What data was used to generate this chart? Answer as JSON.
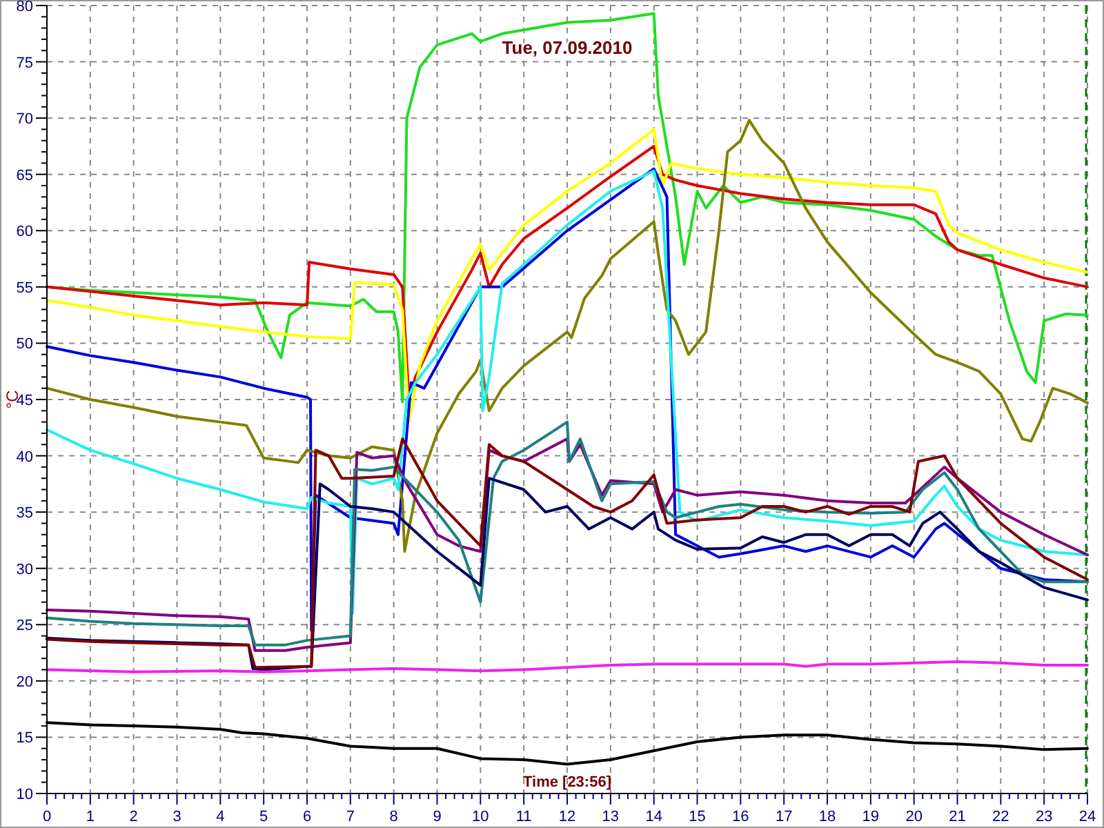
{
  "chart_data": {
    "type": "line",
    "title": "Tue, 07.09.2010",
    "xlabel": "Time [23:56]",
    "ylabel": "°C",
    "xlim": [
      0,
      24
    ],
    "ylim": [
      10,
      80
    ],
    "xticks": [
      0,
      1,
      2,
      3,
      4,
      5,
      6,
      7,
      8,
      9,
      10,
      11,
      12,
      13,
      14,
      15,
      16,
      17,
      18,
      19,
      20,
      21,
      22,
      23,
      24
    ],
    "yticks": [
      10,
      15,
      20,
      25,
      30,
      35,
      40,
      45,
      50,
      55,
      60,
      65,
      70,
      75,
      80
    ],
    "grid": true,
    "marker": "none",
    "line_style": "solid",
    "ref_lines": [
      {
        "axis": "x",
        "value": 24,
        "color": "#008000",
        "line_style": "dashed"
      }
    ],
    "series": [
      {
        "color": "#22dd22",
        "x": [
          0,
          1,
          2,
          3,
          4,
          4.8,
          5.1,
          5.4,
          5.6,
          6,
          7,
          7.3,
          7.6,
          8,
          8.1,
          8.2,
          8.3,
          8.6,
          9,
          9.8,
          10,
          10.5,
          12,
          13,
          14,
          14.1,
          14.5,
          14.7,
          15,
          15.2,
          15.6,
          16,
          16.5,
          17,
          18,
          19,
          20,
          20.5,
          21,
          21.5,
          21.8,
          22.2,
          22.6,
          22.8,
          23,
          23.5,
          24
        ],
        "values": [
          55,
          54.7,
          54.5,
          54.3,
          54.1,
          53.8,
          51,
          48.7,
          52.5,
          53.6,
          53.3,
          53.9,
          52.8,
          52.8,
          51,
          44.8,
          70,
          74.5,
          76.5,
          77.5,
          76.8,
          77.5,
          78.5,
          78.7,
          79.3,
          72,
          63,
          57,
          63.5,
          62,
          64,
          62.5,
          63,
          62.5,
          62.3,
          61.8,
          61,
          59.5,
          58.3,
          57.8,
          57.8,
          52,
          47.5,
          46.5,
          52,
          52.6,
          52.5
        ]
      },
      {
        "color": "#dd0000",
        "x": [
          0,
          1,
          2,
          3,
          4,
          5,
          6,
          6.05,
          7,
          8,
          8.2,
          8.35,
          8.5,
          9,
          9.8,
          10,
          10.2,
          10.5,
          11,
          12,
          13,
          14,
          14.2,
          14.5,
          15,
          16,
          17,
          18,
          19,
          20,
          20.5,
          20.8,
          21,
          22,
          23,
          24
        ],
        "values": [
          55,
          54.6,
          54.2,
          53.8,
          53.4,
          53.6,
          53.4,
          57.2,
          56.6,
          56.1,
          55,
          45,
          47,
          51,
          56.5,
          58,
          55,
          57,
          59.3,
          62,
          64.8,
          67.5,
          65,
          64.5,
          64,
          63.3,
          62.8,
          62.5,
          62.3,
          62.3,
          61.5,
          59,
          58.3,
          57,
          55.8,
          55
        ]
      },
      {
        "color": "#ffff00",
        "x": [
          0,
          1,
          2,
          3,
          4,
          5,
          6,
          7,
          7.1,
          8,
          8.2,
          8.35,
          8.6,
          9,
          9.8,
          10,
          10.2,
          10.5,
          11,
          12,
          13,
          14,
          14.2,
          14.4,
          15,
          16,
          17,
          18,
          19,
          20,
          20.5,
          20.8,
          21,
          22,
          23,
          24
        ],
        "values": [
          53.8,
          53.2,
          52.5,
          52,
          51.5,
          51,
          50.6,
          50.4,
          55.4,
          55.2,
          53,
          43,
          48,
          52,
          57.5,
          58.8,
          56.5,
          58,
          60.5,
          63.5,
          66,
          69,
          64,
          66,
          65.5,
          65,
          64.7,
          64.3,
          64,
          63.8,
          63.5,
          60.5,
          59.8,
          58.3,
          57.2,
          56.3
        ]
      },
      {
        "color": "#0000dd",
        "x": [
          0,
          1,
          2,
          3,
          4,
          5,
          6,
          6.08,
          6.1,
          6.2,
          7,
          8,
          8.1,
          8.4,
          8.7,
          10,
          10.5,
          12,
          14,
          14.3,
          14.5,
          15,
          15.5,
          16,
          17,
          17.5,
          18,
          19,
          19.5,
          20,
          20.5,
          20.7,
          21.5,
          22,
          23,
          24
        ],
        "values": [
          49.7,
          48.9,
          48.3,
          47.6,
          47,
          46,
          45.2,
          45,
          24.5,
          36.5,
          34.5,
          34,
          33,
          46.5,
          46,
          55,
          55,
          60,
          65.5,
          63,
          33,
          32,
          31,
          31.3,
          32,
          31.5,
          32,
          31,
          32,
          31,
          33.5,
          34,
          31.5,
          30,
          29,
          28.8
        ]
      },
      {
        "color": "#808000",
        "x": [
          0,
          1,
          2,
          3,
          4,
          4.6,
          5,
          5.8,
          6,
          6.5,
          7,
          7.5,
          8,
          8.2,
          8.25,
          8.5,
          9,
          9.5,
          9.9,
          10,
          10.2,
          10.5,
          11,
          12,
          12.1,
          12.4,
          12.8,
          13,
          14,
          14.1,
          14.3,
          14.5,
          14.8,
          15.2,
          15.5,
          15.7,
          16,
          16.2,
          16.5,
          17,
          17.5,
          18,
          19,
          20,
          20.5,
          21,
          21.5,
          22,
          22.5,
          22.7,
          22.9,
          23.2,
          23.6,
          24
        ],
        "values": [
          46,
          45,
          44.3,
          43.5,
          43,
          42.7,
          39.8,
          39.4,
          40.5,
          40,
          39.8,
          40.8,
          40.5,
          36,
          31.5,
          36.5,
          42,
          45.5,
          47.5,
          48.5,
          44,
          46,
          48,
          51,
          50.5,
          54,
          56,
          57.5,
          60.8,
          58,
          53,
          52,
          49,
          51,
          60,
          67,
          68,
          69.8,
          68,
          66,
          62,
          59,
          54.5,
          50.8,
          49,
          48.3,
          47.5,
          45.5,
          41.5,
          41.3,
          43,
          46,
          45.5,
          44.7
        ]
      },
      {
        "color": "#22eeee",
        "x": [
          0,
          1,
          2,
          3,
          4,
          5,
          6,
          6.1,
          6.5,
          7,
          7.05,
          7.15,
          7.5,
          8,
          8.1,
          8.3,
          8.5,
          9,
          9.5,
          10,
          10.05,
          10.2,
          10.5,
          11,
          12,
          13,
          14,
          14.2,
          14.6,
          15,
          16,
          17,
          18,
          19,
          20,
          20.5,
          20.7,
          21,
          21.5,
          22,
          23,
          24
        ],
        "values": [
          42.3,
          40.5,
          39.3,
          38,
          37,
          35.9,
          35.3,
          36.3,
          35.8,
          35.5,
          26,
          38,
          37.5,
          38,
          37,
          45,
          46.5,
          49,
          52,
          55,
          44,
          47,
          55.3,
          57,
          60.5,
          63.5,
          65.3,
          62,
          35,
          34.2,
          35.2,
          34.5,
          34.2,
          33.8,
          34.2,
          36.5,
          37.3,
          35.5,
          33.5,
          32.5,
          31.5,
          31.2
        ]
      },
      {
        "color": "#800080",
        "x": [
          0,
          1,
          2,
          3,
          4,
          4.65,
          4.8,
          5.5,
          6,
          7,
          7.15,
          7.5,
          8,
          8.3,
          9,
          9.5,
          10,
          10.2,
          10.5,
          11,
          12,
          12.05,
          12.3,
          12.8,
          13,
          14,
          14.2,
          14.5,
          15,
          16,
          17,
          18,
          19,
          19.8,
          20,
          20.7,
          21,
          22,
          23,
          24
        ],
        "values": [
          26.3,
          26.2,
          26,
          25.8,
          25.7,
          25.5,
          22.7,
          22.7,
          23,
          23.4,
          40.3,
          39.8,
          40,
          37.5,
          33,
          32,
          31.5,
          40.5,
          40,
          39.5,
          41.5,
          39.5,
          41,
          36.5,
          37.8,
          37.5,
          35,
          37,
          36.5,
          36.8,
          36.5,
          36,
          35.8,
          35.8,
          36.5,
          39,
          38,
          35,
          33,
          31.2
        ]
      },
      {
        "color": "#208080",
        "x": [
          0,
          1,
          2,
          3,
          4,
          4.65,
          4.8,
          5.5,
          6,
          7,
          7.1,
          7.5,
          8,
          8.5,
          9,
          9.5,
          10,
          10.3,
          10.5,
          11,
          12,
          12.05,
          12.3,
          12.8,
          13,
          14,
          14.3,
          14.5,
          15,
          15.5,
          16,
          17,
          18,
          19,
          19.8,
          20.2,
          20.7,
          21,
          21.5,
          22,
          22.5,
          23,
          24
        ],
        "values": [
          25.6,
          25.3,
          25.1,
          25,
          24.9,
          24.9,
          23.2,
          23.2,
          23.6,
          24,
          38.8,
          38.7,
          39,
          37,
          35,
          32.5,
          27,
          38,
          39.5,
          40.5,
          43,
          39.5,
          41.5,
          36,
          37.5,
          37.7,
          35,
          34.5,
          35,
          35.5,
          35.7,
          35.2,
          35,
          34.9,
          35,
          37,
          38.5,
          37,
          33.5,
          31.5,
          29.5,
          28.8,
          28.8
        ]
      },
      {
        "color": "#000060",
        "x": [
          0,
          1,
          2,
          3,
          4,
          4.65,
          4.75,
          5,
          6,
          6.1,
          6.3,
          6.5,
          7,
          7.5,
          8,
          9,
          10,
          10.2,
          11,
          11.5,
          12,
          12.5,
          13,
          13.5,
          14,
          14.1,
          14.5,
          15,
          16,
          16.5,
          17,
          17.5,
          18,
          18.5,
          19,
          19.5,
          19.9,
          20.2,
          20.6,
          21,
          21.5,
          22,
          23,
          24
        ],
        "values": [
          23.8,
          23.6,
          23.5,
          23.4,
          23.3,
          23.2,
          21.1,
          21,
          21.3,
          21.3,
          37.5,
          37,
          35.5,
          35.3,
          35,
          31.5,
          28.5,
          38,
          37,
          35,
          35.5,
          33.5,
          34.5,
          33.5,
          35,
          33.5,
          32.5,
          31.7,
          31.8,
          32.8,
          32.3,
          33,
          33,
          32,
          33,
          33,
          32,
          34,
          35,
          33.5,
          31.5,
          30.5,
          28.3,
          27.2
        ]
      },
      {
        "color": "#800000",
        "x": [
          0,
          1,
          2,
          3,
          4,
          4.65,
          4.8,
          6.1,
          6.2,
          6.5,
          6.8,
          7,
          8,
          8.2,
          9,
          10,
          10.2,
          10.5,
          11,
          12,
          12.6,
          13,
          13.5,
          14,
          14.3,
          15,
          16,
          16.5,
          17,
          17.5,
          18,
          18.5,
          19,
          19.5,
          19.9,
          20.1,
          20.7,
          21,
          22,
          23,
          24
        ],
        "values": [
          23.7,
          23.5,
          23.4,
          23.3,
          23.2,
          23.2,
          21.2,
          21.3,
          40.5,
          40,
          38,
          38,
          38.2,
          41.5,
          36,
          32,
          41,
          40,
          39.5,
          37,
          35.5,
          35,
          36,
          38.3,
          34,
          34.3,
          34.5,
          35.5,
          35.5,
          35,
          35.5,
          34.8,
          35.5,
          35.5,
          35,
          39.5,
          40,
          38,
          34,
          31,
          29
        ]
      },
      {
        "color": "#ee22ee",
        "x": [
          0,
          2,
          4,
          5,
          6,
          7,
          8,
          9,
          10,
          11,
          12,
          13,
          14,
          15,
          17,
          17.5,
          18,
          19,
          20,
          21,
          22,
          23,
          24
        ],
        "values": [
          21,
          20.8,
          20.9,
          20.8,
          20.9,
          21,
          21.1,
          21,
          20.9,
          21,
          21.2,
          21.4,
          21.5,
          21.5,
          21.5,
          21.3,
          21.5,
          21.5,
          21.6,
          21.7,
          21.6,
          21.4,
          21.4
        ]
      },
      {
        "color": "#000000",
        "x": [
          0,
          1,
          2,
          3,
          4,
          4.5,
          5,
          6,
          7,
          7.5,
          8,
          9,
          10,
          11,
          12,
          13,
          14,
          15,
          16,
          17,
          18,
          19,
          20,
          21,
          22,
          23,
          24
        ],
        "values": [
          16.3,
          16.1,
          16,
          15.9,
          15.7,
          15.4,
          15.3,
          14.9,
          14.2,
          14.1,
          14,
          14,
          13.1,
          13,
          12.6,
          13,
          13.8,
          14.6,
          15,
          15.2,
          15.2,
          14.8,
          14.5,
          14.4,
          14.2,
          13.9,
          14
        ]
      }
    ]
  }
}
